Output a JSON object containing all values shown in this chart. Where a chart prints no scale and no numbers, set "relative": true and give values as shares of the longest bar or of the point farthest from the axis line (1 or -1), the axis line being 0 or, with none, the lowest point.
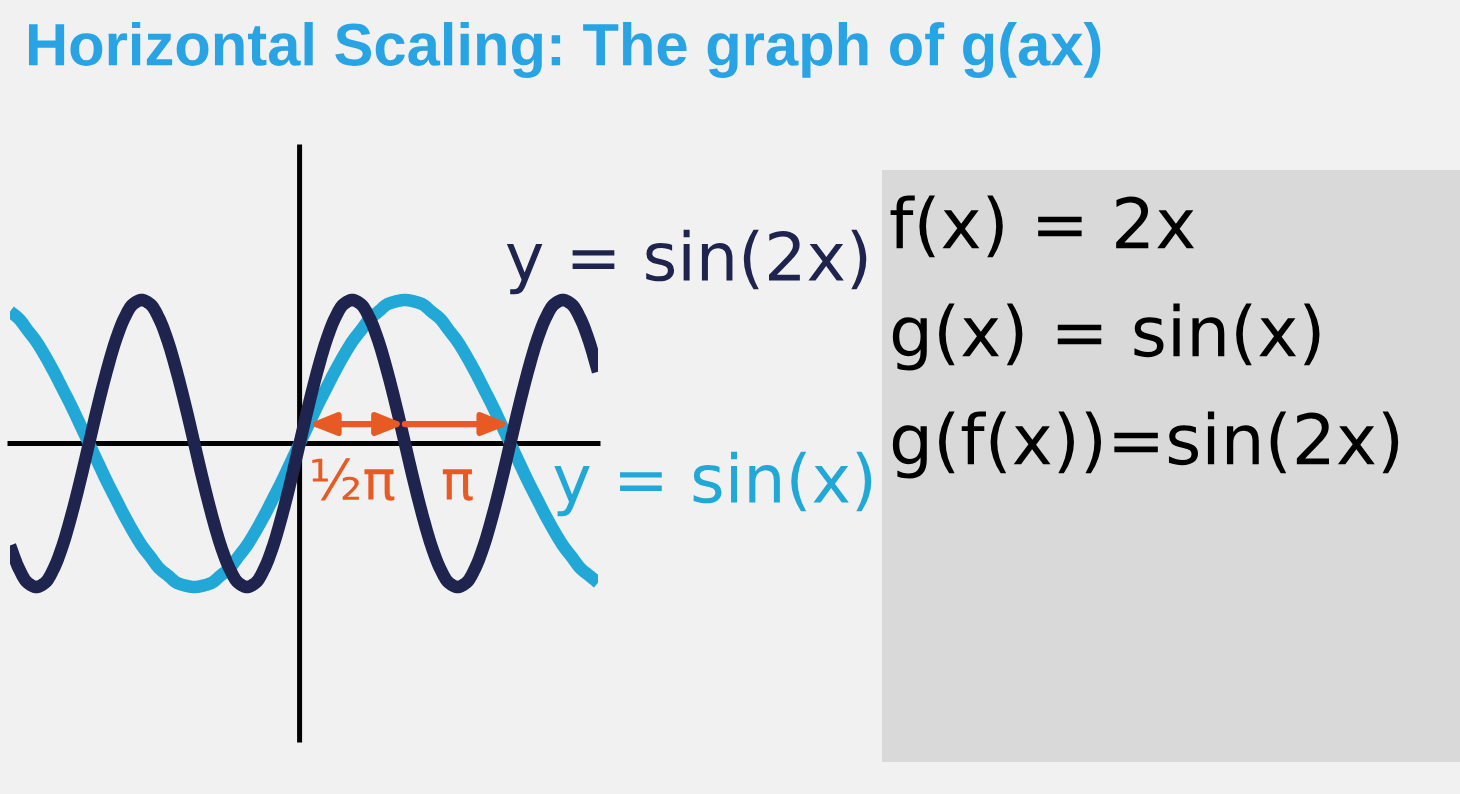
{
  "chart_data": [
    {
      "type": "line",
      "title": "Horizontal Scaling: The graph of g(ax)",
      "relative": true,
      "line_style": "solid",
      "categories": [
        null,
        null,
        null,
        null,
        null,
        null,
        null,
        null,
        null,
        null,
        null,
        null,
        null,
        null,
        null,
        null,
        null,
        null,
        null,
        null,
        null,
        null,
        null,
        null,
        null,
        null,
        null,
        null,
        null,
        null,
        null,
        null,
        null,
        null,
        null,
        null,
        null,
        null,
        null,
        null,
        null,
        null,
        null,
        null,
        null,
        null,
        null,
        null,
        null,
        null,
        null,
        null,
        null,
        null,
        null,
        null,
        null,
        null,
        null,
        null,
        null,
        null,
        null,
        null,
        null,
        null,
        null,
        null
      ],
      "series": [
        {
          "name": "y = sin(x)",
          "color": "#22a8d6",
          "values": [
            0.92,
            0.87,
            0.79,
            0.71,
            0.61,
            0.5,
            0.38,
            0.26,
            0.13,
            0,
            -0.13,
            -0.26,
            -0.38,
            -0.5,
            -0.61,
            -0.71,
            -0.79,
            -0.87,
            -0.92,
            -0.97,
            -0.99,
            -1,
            -0.99,
            -0.97,
            -0.92,
            -0.87,
            -0.79,
            -0.71,
            -0.61,
            -0.5,
            -0.38,
            -0.26,
            -0.13,
            0,
            0.13,
            0.26,
            0.38,
            0.5,
            0.61,
            0.71,
            0.79,
            0.87,
            0.92,
            0.97,
            0.99,
            1,
            0.99,
            0.97,
            0.92,
            0.87,
            0.79,
            0.71,
            0.61,
            0.5,
            0.38,
            0.26,
            0.13,
            0,
            -0.13,
            -0.26,
            -0.38,
            -0.5,
            -0.61,
            -0.71,
            -0.79,
            -0.87,
            -0.92,
            -0.97
          ]
        },
        {
          "name": "y = sin(2x)",
          "color": "#1f244e",
          "values": [
            -0.71,
            -0.87,
            -0.97,
            -1,
            -0.97,
            -0.87,
            -0.71,
            -0.5,
            -0.26,
            0,
            0.26,
            0.5,
            0.71,
            0.87,
            0.97,
            1,
            0.97,
            0.87,
            0.71,
            0.5,
            0.26,
            0,
            -0.26,
            -0.5,
            -0.71,
            -0.87,
            -0.97,
            -1,
            -0.97,
            -0.87,
            -0.71,
            -0.5,
            -0.26,
            0,
            0.26,
            0.5,
            0.71,
            0.87,
            0.97,
            1,
            0.97,
            0.87,
            0.71,
            0.5,
            0.26,
            0,
            -0.26,
            -0.5,
            -0.71,
            -0.87,
            -0.97,
            -1,
            -0.97,
            -0.87,
            -0.71,
            -0.5,
            -0.26,
            0,
            0.26,
            0.5,
            0.71,
            0.87,
            0.97,
            1,
            0.97,
            0.87,
            0.71,
            0.5
          ]
        }
      ],
      "annotations": [
        "½π",
        "π"
      ]
    },
    {
      "type": "other",
      "annotations": [
        "f(x) = 2x",
        "g(x) = sin(x)",
        "g(f(x))=sin(2x)"
      ]
    }
  ]
}
